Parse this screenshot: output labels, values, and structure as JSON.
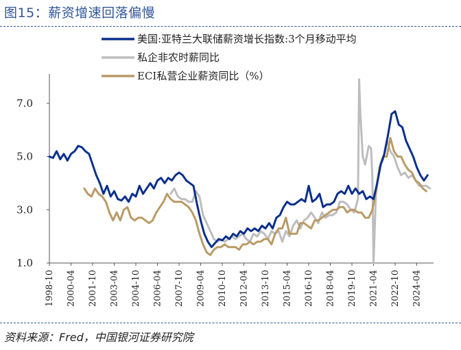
{
  "figure_title": "图15：薪资增速回落偏慢",
  "source_note": "资料来源：Fred，中国银河证券研究院",
  "chart_data": {
    "type": "line",
    "title": "",
    "xlabel": "",
    "ylabel": "",
    "ylim": [
      1.0,
      8.0
    ],
    "yticks": [
      "1.0",
      "3.0",
      "5.0",
      "7.0"
    ],
    "xlim": [
      "1998-10",
      "2025-06"
    ],
    "xticks": [
      "1998-10",
      "2000-04",
      "2001-10",
      "2003-04",
      "2004-10",
      "2006-04",
      "2007-10",
      "2009-04",
      "2010-10",
      "2012-04",
      "2013-10",
      "2015-04",
      "2016-10",
      "2018-04",
      "2019-10",
      "2021-04",
      "2022-10",
      "2024-04"
    ],
    "grid": false,
    "legend_position": "top-right",
    "series": [
      {
        "name": "美国:亚特兰大联储薪资增长指数:3个月移动平均",
        "color": "#0a2f8c",
        "points": [
          [
            "1998-10",
            5.0
          ],
          [
            "1999-01",
            4.95
          ],
          [
            "1999-04",
            5.2
          ],
          [
            "1999-07",
            4.9
          ],
          [
            "1999-10",
            5.1
          ],
          [
            "2000-01",
            4.85
          ],
          [
            "2000-04",
            5.1
          ],
          [
            "2000-07",
            5.2
          ],
          [
            "2000-10",
            5.4
          ],
          [
            "2001-01",
            5.35
          ],
          [
            "2001-04",
            5.2
          ],
          [
            "2001-07",
            5.1
          ],
          [
            "2001-10",
            4.7
          ],
          [
            "2002-01",
            4.3
          ],
          [
            "2002-04",
            4.0
          ],
          [
            "2002-07",
            3.6
          ],
          [
            "2002-10",
            3.9
          ],
          [
            "2003-01",
            3.5
          ],
          [
            "2003-04",
            3.7
          ],
          [
            "2003-07",
            3.4
          ],
          [
            "2003-10",
            3.35
          ],
          [
            "2004-01",
            3.5
          ],
          [
            "2004-04",
            3.3
          ],
          [
            "2004-07",
            3.6
          ],
          [
            "2004-10",
            3.5
          ],
          [
            "2005-01",
            3.9
          ],
          [
            "2005-04",
            3.6
          ],
          [
            "2005-07",
            3.8
          ],
          [
            "2005-10",
            4.0
          ],
          [
            "2006-01",
            3.8
          ],
          [
            "2006-04",
            4.1
          ],
          [
            "2006-07",
            4.2
          ],
          [
            "2006-10",
            4.0
          ],
          [
            "2007-01",
            4.2
          ],
          [
            "2007-04",
            4.1
          ],
          [
            "2007-07",
            4.3
          ],
          [
            "2007-10",
            4.4
          ],
          [
            "2008-01",
            4.3
          ],
          [
            "2008-04",
            4.1
          ],
          [
            "2008-07",
            4.0
          ],
          [
            "2008-10",
            3.9
          ],
          [
            "2009-01",
            3.2
          ],
          [
            "2009-04",
            2.6
          ],
          [
            "2009-07",
            2.1
          ],
          [
            "2009-10",
            1.8
          ],
          [
            "2010-01",
            1.6
          ],
          [
            "2010-04",
            1.75
          ],
          [
            "2010-07",
            1.9
          ],
          [
            "2010-10",
            1.85
          ],
          [
            "2011-01",
            2.0
          ],
          [
            "2011-04",
            1.9
          ],
          [
            "2011-07",
            2.1
          ],
          [
            "2011-10",
            2.0
          ],
          [
            "2012-01",
            2.2
          ],
          [
            "2012-04",
            2.1
          ],
          [
            "2012-07",
            2.3
          ],
          [
            "2012-10",
            2.2
          ],
          [
            "2013-01",
            2.3
          ],
          [
            "2013-04",
            2.2
          ],
          [
            "2013-07",
            2.4
          ],
          [
            "2013-10",
            2.3
          ],
          [
            "2014-01",
            2.5
          ],
          [
            "2014-04",
            2.3
          ],
          [
            "2014-07",
            2.7
          ],
          [
            "2014-10",
            2.8
          ],
          [
            "2015-01",
            3.1
          ],
          [
            "2015-04",
            3.3
          ],
          [
            "2015-07",
            3.2
          ],
          [
            "2015-10",
            3.2
          ],
          [
            "2016-01",
            3.3
          ],
          [
            "2016-04",
            3.4
          ],
          [
            "2016-07",
            3.3
          ],
          [
            "2016-10",
            3.9
          ],
          [
            "2017-01",
            3.3
          ],
          [
            "2017-04",
            3.4
          ],
          [
            "2017-07",
            3.6
          ],
          [
            "2017-10",
            3.1
          ],
          [
            "2018-01",
            3.2
          ],
          [
            "2018-04",
            3.2
          ],
          [
            "2018-07",
            3.3
          ],
          [
            "2018-10",
            3.6
          ],
          [
            "2019-01",
            3.7
          ],
          [
            "2019-04",
            3.6
          ],
          [
            "2019-07",
            3.9
          ],
          [
            "2019-10",
            3.6
          ],
          [
            "2020-01",
            3.8
          ],
          [
            "2020-04",
            3.6
          ],
          [
            "2020-07",
            3.7
          ],
          [
            "2020-10",
            3.4
          ],
          [
            "2021-01",
            3.5
          ],
          [
            "2021-04",
            3.4
          ],
          [
            "2021-07",
            4.0
          ],
          [
            "2021-10",
            4.7
          ],
          [
            "2022-01",
            5.1
          ],
          [
            "2022-04",
            5.8
          ],
          [
            "2022-07",
            6.6
          ],
          [
            "2022-10",
            6.7
          ],
          [
            "2023-01",
            6.2
          ],
          [
            "2023-04",
            6.1
          ],
          [
            "2023-07",
            5.6
          ],
          [
            "2023-10",
            5.3
          ],
          [
            "2024-01",
            5.0
          ],
          [
            "2024-04",
            4.6
          ],
          [
            "2024-07",
            4.3
          ],
          [
            "2024-10",
            4.1
          ],
          [
            "2025-01",
            4.3
          ]
        ]
      },
      {
        "name": "私企非农时薪同比",
        "color": "#bdbdbd",
        "points": [
          [
            "2007-03",
            3.6
          ],
          [
            "2007-06",
            3.8
          ],
          [
            "2007-09",
            3.5
          ],
          [
            "2007-12",
            3.4
          ],
          [
            "2008-03",
            3.4
          ],
          [
            "2008-06",
            3.3
          ],
          [
            "2008-09",
            3.3
          ],
          [
            "2008-12",
            3.7
          ],
          [
            "2009-03",
            3.5
          ],
          [
            "2009-06",
            2.8
          ],
          [
            "2009-09",
            2.5
          ],
          [
            "2009-12",
            2.2
          ],
          [
            "2010-03",
            1.9
          ],
          [
            "2010-06",
            1.8
          ],
          [
            "2010-09",
            1.9
          ],
          [
            "2010-12",
            1.8
          ],
          [
            "2011-03",
            1.9
          ],
          [
            "2011-06",
            2.0
          ],
          [
            "2011-09",
            1.9
          ],
          [
            "2011-12",
            2.0
          ],
          [
            "2012-03",
            2.1
          ],
          [
            "2012-06",
            1.9
          ],
          [
            "2012-09",
            1.8
          ],
          [
            "2012-12",
            2.1
          ],
          [
            "2013-03",
            2.0
          ],
          [
            "2013-06",
            2.2
          ],
          [
            "2013-09",
            2.1
          ],
          [
            "2013-12",
            1.9
          ],
          [
            "2014-03",
            2.2
          ],
          [
            "2014-06",
            2.1
          ],
          [
            "2014-09",
            2.2
          ],
          [
            "2014-12",
            1.8
          ],
          [
            "2015-03",
            2.2
          ],
          [
            "2015-06",
            2.0
          ],
          [
            "2015-09",
            2.4
          ],
          [
            "2015-12",
            2.6
          ],
          [
            "2016-03",
            2.3
          ],
          [
            "2016-06",
            2.6
          ],
          [
            "2016-09",
            2.7
          ],
          [
            "2016-12",
            2.9
          ],
          [
            "2017-03",
            2.7
          ],
          [
            "2017-06",
            2.5
          ],
          [
            "2017-09",
            2.9
          ],
          [
            "2017-12",
            2.7
          ],
          [
            "2018-03",
            2.8
          ],
          [
            "2018-06",
            2.8
          ],
          [
            "2018-09",
            2.9
          ],
          [
            "2018-12",
            3.3
          ],
          [
            "2019-03",
            3.3
          ],
          [
            "2019-06",
            3.2
          ],
          [
            "2019-09",
            3.0
          ],
          [
            "2019-12",
            2.9
          ],
          [
            "2020-03",
            3.4
          ],
          [
            "2020-04",
            7.9
          ],
          [
            "2020-05",
            6.6
          ],
          [
            "2020-07",
            5.0
          ],
          [
            "2020-09",
            4.7
          ],
          [
            "2020-12",
            5.4
          ],
          [
            "2021-02",
            5.3
          ],
          [
            "2021-03",
            4.2
          ],
          [
            "2021-04",
            1.0
          ],
          [
            "2021-06",
            3.6
          ],
          [
            "2021-09",
            4.6
          ],
          [
            "2021-12",
            4.9
          ],
          [
            "2022-03",
            5.6
          ],
          [
            "2022-06",
            5.2
          ],
          [
            "2022-09",
            5.0
          ],
          [
            "2022-12",
            4.6
          ],
          [
            "2023-03",
            4.3
          ],
          [
            "2023-06",
            4.4
          ],
          [
            "2023-09",
            4.2
          ],
          [
            "2023-12",
            4.3
          ],
          [
            "2024-03",
            4.1
          ],
          [
            "2024-06",
            3.9
          ],
          [
            "2024-09",
            3.9
          ],
          [
            "2024-12",
            3.9
          ],
          [
            "2025-03",
            3.8
          ]
        ]
      },
      {
        "name": "ECI私营企业薪资同比（%）",
        "color": "#b99a66",
        "points": [
          [
            "2001-03",
            3.8
          ],
          [
            "2001-06",
            3.6
          ],
          [
            "2001-09",
            3.5
          ],
          [
            "2001-12",
            3.8
          ],
          [
            "2002-03",
            3.6
          ],
          [
            "2002-06",
            3.5
          ],
          [
            "2002-09",
            3.3
          ],
          [
            "2002-12",
            2.9
          ],
          [
            "2003-03",
            2.6
          ],
          [
            "2003-06",
            2.9
          ],
          [
            "2003-09",
            2.6
          ],
          [
            "2003-12",
            3.0
          ],
          [
            "2004-03",
            3.1
          ],
          [
            "2004-06",
            2.7
          ],
          [
            "2004-09",
            2.6
          ],
          [
            "2004-12",
            2.7
          ],
          [
            "2005-03",
            2.7
          ],
          [
            "2005-06",
            2.6
          ],
          [
            "2005-09",
            2.5
          ],
          [
            "2005-12",
            2.6
          ],
          [
            "2006-03",
            2.9
          ],
          [
            "2006-06",
            3.1
          ],
          [
            "2006-09",
            3.3
          ],
          [
            "2006-12",
            3.6
          ],
          [
            "2007-03",
            3.4
          ],
          [
            "2007-06",
            3.3
          ],
          [
            "2007-09",
            3.3
          ],
          [
            "2007-12",
            3.3
          ],
          [
            "2008-03",
            3.2
          ],
          [
            "2008-06",
            3.1
          ],
          [
            "2008-09",
            2.9
          ],
          [
            "2008-12",
            2.6
          ],
          [
            "2009-03",
            2.1
          ],
          [
            "2009-06",
            1.7
          ],
          [
            "2009-09",
            1.4
          ],
          [
            "2009-12",
            1.3
          ],
          [
            "2010-03",
            1.5
          ],
          [
            "2010-06",
            1.6
          ],
          [
            "2010-09",
            1.6
          ],
          [
            "2010-12",
            1.7
          ],
          [
            "2011-03",
            1.6
          ],
          [
            "2011-06",
            1.6
          ],
          [
            "2011-09",
            1.6
          ],
          [
            "2011-12",
            1.5
          ],
          [
            "2012-03",
            1.7
          ],
          [
            "2012-06",
            1.7
          ],
          [
            "2012-09",
            1.8
          ],
          [
            "2012-12",
            1.7
          ],
          [
            "2013-03",
            1.8
          ],
          [
            "2013-06",
            1.8
          ],
          [
            "2013-09",
            1.9
          ],
          [
            "2013-12",
            1.9
          ],
          [
            "2014-03",
            1.7
          ],
          [
            "2014-06",
            2.1
          ],
          [
            "2014-09",
            2.3
          ],
          [
            "2014-12",
            2.3
          ],
          [
            "2015-03",
            2.7
          ],
          [
            "2015-06",
            2.1
          ],
          [
            "2015-09",
            2.1
          ],
          [
            "2015-12",
            2.1
          ],
          [
            "2016-03",
            2.5
          ],
          [
            "2016-06",
            2.5
          ],
          [
            "2016-09",
            2.4
          ],
          [
            "2016-12",
            2.3
          ],
          [
            "2017-03",
            2.6
          ],
          [
            "2017-06",
            2.6
          ],
          [
            "2017-09",
            2.7
          ],
          [
            "2017-12",
            2.8
          ],
          [
            "2018-03",
            2.9
          ],
          [
            "2018-06",
            3.0
          ],
          [
            "2018-09",
            3.0
          ],
          [
            "2018-12",
            3.1
          ],
          [
            "2019-03",
            3.1
          ],
          [
            "2019-06",
            2.9
          ],
          [
            "2019-09",
            3.0
          ],
          [
            "2019-12",
            3.0
          ],
          [
            "2020-03",
            2.9
          ],
          [
            "2020-06",
            2.9
          ],
          [
            "2020-09",
            2.7
          ],
          [
            "2020-12",
            2.7
          ],
          [
            "2021-03",
            3.0
          ],
          [
            "2021-06",
            3.7
          ],
          [
            "2021-09",
            4.6
          ],
          [
            "2021-12",
            5.0
          ],
          [
            "2022-03",
            5.0
          ],
          [
            "2022-06",
            5.7
          ],
          [
            "2022-09",
            5.2
          ],
          [
            "2022-12",
            5.0
          ],
          [
            "2023-03",
            5.0
          ],
          [
            "2023-06",
            4.7
          ],
          [
            "2023-09",
            4.5
          ],
          [
            "2023-12",
            4.4
          ],
          [
            "2024-03",
            4.1
          ],
          [
            "2024-06",
            4.0
          ],
          [
            "2024-09",
            3.8
          ],
          [
            "2024-12",
            3.7
          ]
        ]
      }
    ]
  }
}
